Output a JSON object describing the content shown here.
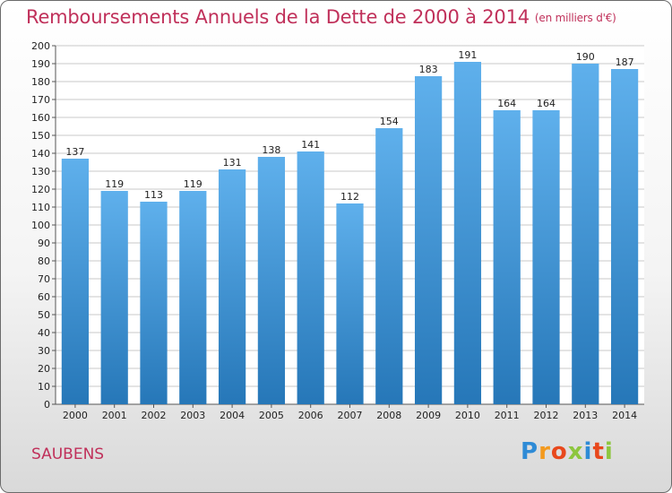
{
  "header": {
    "title": "Remboursements Annuels de la Dette de 2000 à 2014",
    "unit": "(en milliers d'€)"
  },
  "commune": "SAUBENS",
  "logo": {
    "letters": [
      "P",
      "r",
      "o",
      "x",
      "i",
      "t",
      "i"
    ],
    "colors": [
      "#2e8bd6",
      "#f39a1e",
      "#e8481c",
      "#8dc63f",
      "#2e8bd6",
      "#e8481c",
      "#8dc63f"
    ]
  },
  "colors": {
    "title": "#c0305a",
    "bar_light": "#5fb0ec",
    "bar_dark": "#2677b8",
    "grid": "#c8c8c8"
  },
  "chart_data": {
    "type": "bar",
    "title": "Remboursements Annuels de la Dette de 2000 à 2014",
    "xlabel": "",
    "ylabel": "",
    "categories": [
      "2000",
      "2001",
      "2002",
      "2003",
      "2004",
      "2005",
      "2006",
      "2007",
      "2008",
      "2009",
      "2010",
      "2011",
      "2012",
      "2013",
      "2014"
    ],
    "values": [
      137,
      119,
      113,
      119,
      131,
      138,
      141,
      112,
      154,
      183,
      191,
      164,
      164,
      190,
      187
    ],
    "ylim": [
      0,
      200
    ],
    "ytick_step": 10,
    "grid": true
  }
}
